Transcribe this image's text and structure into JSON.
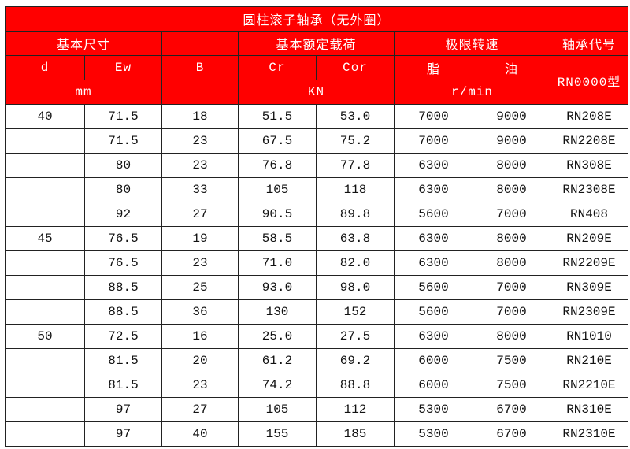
{
  "title": "圆柱滚子轴承（无外圈）",
  "header": {
    "basic_size": "基本尺寸",
    "rated_load": "基本额定载荷",
    "speed_limit": "极限转速",
    "bearing_code": "轴承代号",
    "d": "d",
    "ew": "Ew",
    "b": "B",
    "cr": "Cr",
    "cor": "Cor",
    "grease": "脂",
    "oil": "油",
    "type": "RN0000型",
    "unit_mm": "mm",
    "unit_kn": "KN",
    "unit_rpm": "r/min"
  },
  "rows": [
    [
      "40",
      "71.5",
      "18",
      "51.5",
      "53.0",
      "7000",
      "9000",
      "RN208E"
    ],
    [
      "",
      "71.5",
      "23",
      "67.5",
      "75.2",
      "7000",
      "9000",
      "RN2208E"
    ],
    [
      "",
      "80",
      "23",
      "76.8",
      "77.8",
      "6300",
      "8000",
      "RN308E"
    ],
    [
      "",
      "80",
      "33",
      "105",
      "118",
      "6300",
      "8000",
      "RN2308E"
    ],
    [
      "",
      "92",
      "27",
      "90.5",
      "89.8",
      "5600",
      "7000",
      "RN408"
    ],
    [
      "45",
      "76.5",
      "19",
      "58.5",
      "63.8",
      "6300",
      "8000",
      "RN209E"
    ],
    [
      "",
      "76.5",
      "23",
      "71.0",
      "82.0",
      "6300",
      "8000",
      "RN2209E"
    ],
    [
      "",
      "88.5",
      "25",
      "93.0",
      "98.0",
      "5600",
      "7000",
      "RN309E"
    ],
    [
      "",
      "88.5",
      "36",
      "130",
      "152",
      "5600",
      "7000",
      "RN2309E"
    ],
    [
      "50",
      "72.5",
      "16",
      "25.0",
      "27.5",
      "6300",
      "8000",
      "RN1010"
    ],
    [
      "",
      "81.5",
      "20",
      "61.2",
      "69.2",
      "6000",
      "7500",
      "RN210E"
    ],
    [
      "",
      "81.5",
      "23",
      "74.2",
      "88.8",
      "6000",
      "7500",
      "RN2210E"
    ],
    [
      "",
      "97",
      "27",
      "105",
      "112",
      "5300",
      "6700",
      "RN310E"
    ],
    [
      "",
      "97",
      "40",
      "155",
      "185",
      "5300",
      "6700",
      "RN2310E"
    ]
  ],
  "colors": {
    "header_bg": "#ff0000",
    "header_text": "#ffffff"
  }
}
